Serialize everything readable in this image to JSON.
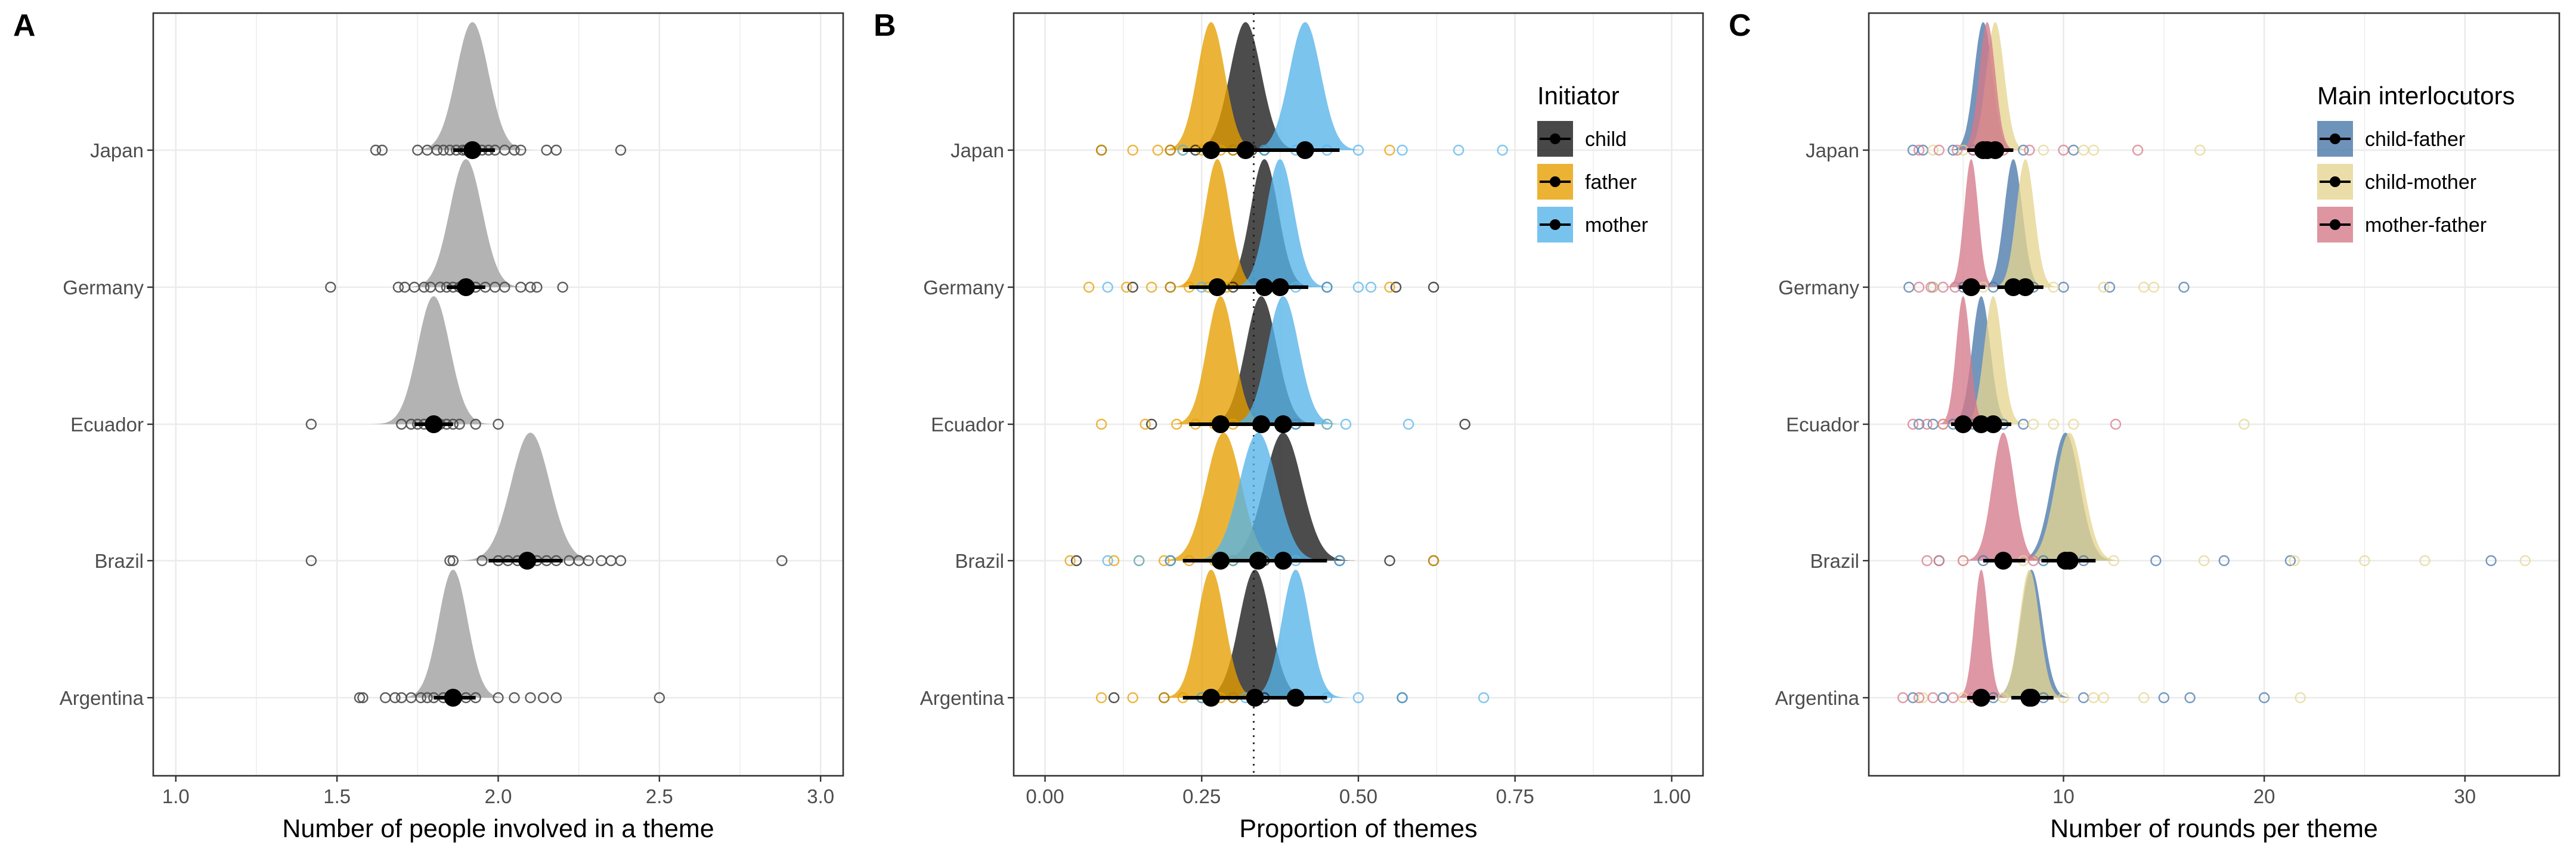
{
  "chart_data": [
    {
      "panel": "A",
      "type": "density-ridgeline",
      "title": "",
      "xlabel": "Number of people involved in a theme",
      "ylabel": "",
      "xlim": [
        0.93,
        3.07
      ],
      "xticks": [
        "1.0",
        "1.5",
        "2.0",
        "2.5",
        "3.0"
      ],
      "categories": [
        "Japan",
        "Germany",
        "Ecuador",
        "Brazil",
        "Argentina"
      ],
      "grid": true,
      "colors": {
        "density": "#b3b3b3",
        "points": "#4d4d4d",
        "summary": "#000000"
      },
      "series": [
        {
          "points": [
            {
              "y": "Japan",
              "peak": 1.92,
              "sd": 0.05,
              "mean": 1.92,
              "ci": [
                1.86,
                1.99
              ],
              "obs": [
                1.62,
                1.64,
                1.75,
                1.78,
                1.81,
                1.83,
                1.85,
                1.87,
                1.89,
                1.9,
                1.93,
                1.95,
                1.97,
                1.99,
                2.02,
                2.05,
                2.07,
                2.15,
                2.18,
                2.38
              ]
            },
            {
              "y": "Germany",
              "peak": 1.9,
              "sd": 0.05,
              "mean": 1.9,
              "ci": [
                1.84,
                1.96
              ],
              "obs": [
                1.48,
                1.69,
                1.71,
                1.74,
                1.77,
                1.79,
                1.82,
                1.84,
                1.86,
                1.88,
                1.91,
                1.93,
                1.96,
                1.99,
                2.02,
                2.07,
                2.1,
                2.12,
                2.2
              ]
            },
            {
              "y": "Ecuador",
              "peak": 1.8,
              "sd": 0.05,
              "mean": 1.8,
              "ci": [
                1.74,
                1.86
              ],
              "obs": [
                1.42,
                1.7,
                1.73,
                1.75,
                1.77,
                1.79,
                1.8,
                1.82,
                1.84,
                1.86,
                1.88,
                1.93,
                2.0
              ]
            },
            {
              "y": "Brazil",
              "peak": 2.1,
              "sd": 0.06,
              "mean": 2.09,
              "ci": [
                1.97,
                2.2
              ],
              "obs": [
                1.42,
                1.85,
                1.86,
                1.95,
                2.0,
                2.03,
                2.06,
                2.08,
                2.1,
                2.12,
                2.15,
                2.18,
                2.22,
                2.25,
                2.28,
                2.32,
                2.35,
                2.38,
                2.88
              ]
            },
            {
              "y": "Argentina",
              "peak": 1.86,
              "sd": 0.045,
              "mean": 1.86,
              "ci": [
                1.8,
                1.93
              ],
              "obs": [
                1.57,
                1.58,
                1.65,
                1.68,
                1.7,
                1.73,
                1.76,
                1.78,
                1.8,
                1.83,
                1.85,
                1.87,
                1.9,
                1.93,
                2.0,
                2.05,
                2.1,
                2.14,
                2.18,
                2.5
              ]
            }
          ]
        }
      ]
    },
    {
      "panel": "B",
      "type": "density-ridgeline",
      "title": "",
      "xlabel": "Proportion of themes",
      "ylabel": "",
      "xlim": [
        -0.05,
        1.05
      ],
      "xticks": [
        "0.00",
        "0.25",
        "0.50",
        "0.75",
        "1.00"
      ],
      "categories": [
        "Japan",
        "Germany",
        "Ecuador",
        "Brazil",
        "Argentina"
      ],
      "reference_line": 0.333,
      "grid": true,
      "legend": {
        "title": "Initiator",
        "position": "top-right"
      },
      "series": [
        {
          "name": "child",
          "color": "#1a1a1a",
          "points": [
            {
              "y": "Japan",
              "peak": 0.32,
              "sd": 0.025,
              "mean": 0.32,
              "ci": [
                0.27,
                0.37
              ],
              "obs": [
                0.09,
                0.2,
                0.24,
                0.3,
                0.33,
                0.35
              ]
            },
            {
              "y": "Germany",
              "peak": 0.35,
              "sd": 0.022,
              "mean": 0.35,
              "ci": [
                0.3,
                0.4
              ],
              "obs": [
                0.14,
                0.2,
                0.3,
                0.35,
                0.45,
                0.56,
                0.62
              ]
            },
            {
              "y": "Ecuador",
              "peak": 0.345,
              "sd": 0.025,
              "mean": 0.345,
              "ci": [
                0.29,
                0.4
              ],
              "obs": [
                0.17,
                0.28,
                0.35,
                0.4,
                0.67
              ]
            },
            {
              "y": "Brazil",
              "peak": 0.38,
              "sd": 0.03,
              "mean": 0.38,
              "ci": [
                0.31,
                0.45
              ],
              "obs": [
                0.05,
                0.2,
                0.3,
                0.35,
                0.47,
                0.55,
                0.62
              ]
            },
            {
              "y": "Argentina",
              "peak": 0.335,
              "sd": 0.025,
              "mean": 0.335,
              "ci": [
                0.28,
                0.39
              ],
              "obs": [
                0.11,
                0.19,
                0.25,
                0.3,
                0.35,
                0.4,
                0.57
              ]
            }
          ]
        },
        {
          "name": "father",
          "color": "#e69f00",
          "points": [
            {
              "y": "Japan",
              "peak": 0.265,
              "sd": 0.022,
              "mean": 0.265,
              "ci": [
                0.22,
                0.31
              ],
              "obs": [
                0.09,
                0.14,
                0.18,
                0.2,
                0.22,
                0.25,
                0.28,
                0.3,
                0.55
              ]
            },
            {
              "y": "Germany",
              "peak": 0.275,
              "sd": 0.02,
              "mean": 0.275,
              "ci": [
                0.23,
                0.32
              ],
              "obs": [
                0.07,
                0.13,
                0.17,
                0.2,
                0.23,
                0.26,
                0.29,
                0.55
              ]
            },
            {
              "y": "Ecuador",
              "peak": 0.28,
              "sd": 0.022,
              "mean": 0.28,
              "ci": [
                0.23,
                0.33
              ],
              "obs": [
                0.09,
                0.16,
                0.21,
                0.24,
                0.27,
                0.3,
                0.45
              ]
            },
            {
              "y": "Brazil",
              "peak": 0.285,
              "sd": 0.028,
              "mean": 0.28,
              "ci": [
                0.22,
                0.34
              ],
              "obs": [
                0.04,
                0.11,
                0.15,
                0.19,
                0.23,
                0.27,
                0.3,
                0.62
              ]
            },
            {
              "y": "Argentina",
              "peak": 0.265,
              "sd": 0.022,
              "mean": 0.265,
              "ci": [
                0.22,
                0.31
              ],
              "obs": [
                0.09,
                0.14,
                0.19,
                0.22,
                0.25,
                0.28,
                0.3
              ]
            }
          ]
        },
        {
          "name": "mother",
          "color": "#56b4e9",
          "points": [
            {
              "y": "Japan",
              "peak": 0.415,
              "sd": 0.025,
              "mean": 0.415,
              "ci": [
                0.36,
                0.47
              ],
              "obs": [
                0.22,
                0.35,
                0.4,
                0.45,
                0.5,
                0.57,
                0.66,
                0.73
              ]
            },
            {
              "y": "Germany",
              "peak": 0.375,
              "sd": 0.022,
              "mean": 0.375,
              "ci": [
                0.33,
                0.42
              ],
              "obs": [
                0.1,
                0.25,
                0.35,
                0.4,
                0.45,
                0.5,
                0.52
              ]
            },
            {
              "y": "Ecuador",
              "peak": 0.38,
              "sd": 0.025,
              "mean": 0.38,
              "ci": [
                0.33,
                0.43
              ],
              "obs": [
                0.28,
                0.35,
                0.4,
                0.45,
                0.48,
                0.58
              ]
            },
            {
              "y": "Brazil",
              "peak": 0.34,
              "sd": 0.03,
              "mean": 0.34,
              "ci": [
                0.28,
                0.4
              ],
              "obs": [
                0.1,
                0.15,
                0.2,
                0.3,
                0.4,
                0.47
              ]
            },
            {
              "y": "Argentina",
              "peak": 0.4,
              "sd": 0.022,
              "mean": 0.4,
              "ci": [
                0.35,
                0.45
              ],
              "obs": [
                0.25,
                0.32,
                0.4,
                0.45,
                0.5,
                0.57,
                0.7
              ]
            }
          ]
        }
      ]
    },
    {
      "panel": "C",
      "type": "density-ridgeline",
      "title": "",
      "xlabel": "Number of rounds per theme",
      "ylabel": "",
      "xlim": [
        0.3,
        34.7
      ],
      "xticks": [
        "10",
        "20",
        "30"
      ],
      "categories": [
        "Japan",
        "Germany",
        "Ecuador",
        "Brazil",
        "Argentina"
      ],
      "grid": true,
      "legend": {
        "title": "Main interlocutors",
        "position": "top-right"
      },
      "series": [
        {
          "name": "child-father",
          "color": "#4a78a9",
          "points": [
            {
              "y": "Japan",
              "peak": 6.0,
              "sd": 0.45,
              "mean": 6.0,
              "ci": [
                5.2,
                6.9
              ],
              "obs": [
                2.5,
                3.0,
                4.5,
                5.5,
                6.5,
                8.0,
                10.5
              ]
            },
            {
              "y": "Germany",
              "peak": 7.5,
              "sd": 0.45,
              "mean": 7.5,
              "ci": [
                6.7,
                8.4
              ],
              "obs": [
                2.3,
                3.5,
                5.0,
                6.5,
                8.5,
                10.0,
                12.3,
                16.0
              ]
            },
            {
              "y": "Ecuador",
              "peak": 5.9,
              "sd": 0.45,
              "mean": 5.9,
              "ci": [
                5.1,
                6.8
              ],
              "obs": [
                2.8,
                3.5,
                4.5,
                5.5,
                7.0,
                8.0
              ]
            },
            {
              "y": "Brazil",
              "peak": 10.1,
              "sd": 0.7,
              "mean": 10.1,
              "ci": [
                8.9,
                11.4
              ],
              "obs": [
                3.8,
                6.0,
                9.0,
                11.0,
                14.6,
                18.0,
                21.3,
                31.3
              ]
            },
            {
              "y": "Argentina",
              "peak": 8.4,
              "sd": 0.55,
              "mean": 8.4,
              "ci": [
                7.4,
                9.5
              ],
              "obs": [
                2.5,
                4.0,
                6.5,
                9.0,
                11.0,
                15.0,
                16.3,
                20.0
              ]
            }
          ]
        },
        {
          "name": "child-mother",
          "color": "#e6d591",
          "points": [
            {
              "y": "Japan",
              "peak": 6.6,
              "sd": 0.45,
              "mean": 6.6,
              "ci": [
                5.8,
                7.5
              ],
              "obs": [
                3.5,
                5.0,
                7.0,
                9.0,
                11.0,
                11.5,
                16.8
              ]
            },
            {
              "y": "Germany",
              "peak": 8.1,
              "sd": 0.45,
              "mean": 8.1,
              "ci": [
                7.3,
                9.0
              ],
              "obs": [
                3.5,
                6.0,
                9.5,
                12.0,
                14.0,
                14.5
              ]
            },
            {
              "y": "Ecuador",
              "peak": 6.5,
              "sd": 0.45,
              "mean": 6.5,
              "ci": [
                5.7,
                7.4
              ],
              "obs": [
                4.0,
                6.0,
                8.5,
                9.5,
                10.5,
                19.0
              ]
            },
            {
              "y": "Brazil",
              "peak": 10.3,
              "sd": 0.7,
              "mean": 10.3,
              "ci": [
                9.0,
                11.6
              ],
              "obs": [
                5.0,
                8.0,
                12.5,
                17.0,
                21.5,
                25.0,
                28.0,
                33.0
              ]
            },
            {
              "y": "Argentina",
              "peak": 8.3,
              "sd": 0.5,
              "mean": 8.3,
              "ci": [
                7.4,
                9.3
              ],
              "obs": [
                3.0,
                5.0,
                7.0,
                10.0,
                11.5,
                12.0,
                14.0,
                21.8
              ]
            }
          ]
        },
        {
          "name": "mother-father",
          "color": "#d57a8a",
          "points": [
            {
              "y": "Japan",
              "peak": 6.2,
              "sd": 0.4,
              "mean": 6.2,
              "ci": [
                5.4,
                7.0
              ],
              "obs": [
                2.8,
                3.8,
                4.7,
                5.5,
                7.0,
                8.3,
                10.0,
                13.7
              ]
            },
            {
              "y": "Germany",
              "peak": 5.4,
              "sd": 0.35,
              "mean": 5.4,
              "ci": [
                4.8,
                6.1
              ],
              "obs": [
                2.8,
                3.4,
                4.0,
                4.6,
                5.5
              ]
            },
            {
              "y": "Ecuador",
              "peak": 5.0,
              "sd": 0.35,
              "mean": 5.0,
              "ci": [
                4.4,
                5.7
              ],
              "obs": [
                2.5,
                3.2,
                4.0,
                5.0,
                12.6
              ]
            },
            {
              "y": "Brazil",
              "peak": 7.0,
              "sd": 0.55,
              "mean": 7.0,
              "ci": [
                6.0,
                8.1
              ],
              "obs": [
                3.2,
                3.8,
                5.0,
                7.0,
                8.5
              ]
            },
            {
              "y": "Argentina",
              "peak": 5.9,
              "sd": 0.35,
              "mean": 5.9,
              "ci": [
                5.2,
                6.6
              ],
              "obs": [
                2.0,
                2.8,
                3.5,
                4.5,
                5.5
              ]
            }
          ]
        }
      ]
    }
  ]
}
